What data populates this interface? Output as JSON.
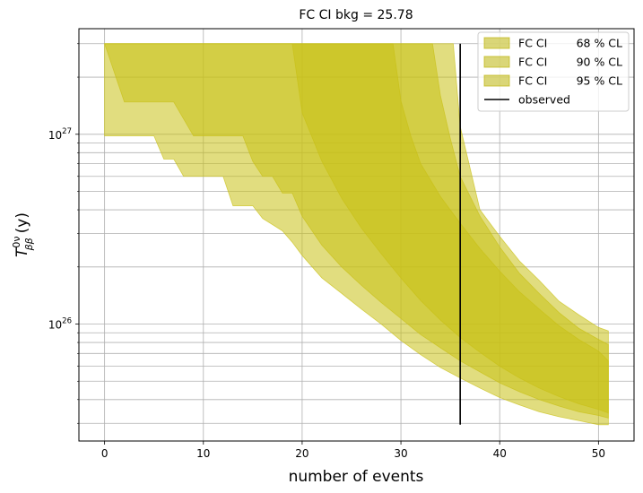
{
  "chart_data": {
    "type": "area",
    "title": "FC CI bkg = 25.78",
    "xlabel": "number of events",
    "ylabel": {
      "base": "T",
      "sup": "0ν",
      "sub": "ββ",
      "unit": "(y)"
    },
    "xlim": [
      -2.6,
      53.6
    ],
    "ylim": [
      2.42e+25,
      3.6e+27
    ],
    "yscale": "log",
    "grid": true,
    "x_ticks": [
      0,
      10,
      20,
      30,
      40,
      50
    ],
    "y_major_ticks": [
      {
        "value": 1e+26,
        "base": "10",
        "exp": "26"
      },
      {
        "value": 1e+27,
        "base": "10",
        "exp": "27"
      }
    ],
    "y_minor_ticks": [
      3e+25,
      4e+25,
      5e+25,
      6e+25,
      7e+25,
      8e+25,
      9e+25,
      2e+26,
      3e+26,
      4e+26,
      5e+26,
      6e+26,
      7e+26,
      8e+26,
      9e+26,
      2e+27,
      3e+27
    ],
    "legend_position": "top-right",
    "legend": [
      {
        "label": "FC CI",
        "cl": "68 % CL",
        "kind": "band",
        "color": "#bcb40a"
      },
      {
        "label": "FC CI",
        "cl": "90 % CL",
        "kind": "band",
        "color": "#bcb40a"
      },
      {
        "label": "FC CI",
        "cl": "95 % CL",
        "kind": "band",
        "color": "#bcb40a"
      },
      {
        "label": "observed",
        "cl": "",
        "kind": "line",
        "color": "#000000"
      }
    ],
    "series": [
      {
        "name": "FC CI 95 % CL",
        "color": "#c9c116",
        "opacity": 0.55,
        "upper": [
          [
            0,
            3e+27
          ],
          [
            35.3,
            3e+27
          ],
          [
            36,
            1.1e+27
          ],
          [
            38,
            4e+26
          ],
          [
            40,
            2.9e+26
          ],
          [
            42,
            2.15e+26
          ],
          [
            44,
            1.7e+26
          ],
          [
            46,
            1.32e+26
          ],
          [
            48,
            1.12e+26
          ],
          [
            50,
            9.6e+25
          ],
          [
            51,
            9.2e+25
          ]
        ],
        "lower": [
          [
            0,
            9.8e+26
          ],
          [
            5,
            9.8e+26
          ],
          [
            6,
            7.4e+26
          ],
          [
            7,
            7.4e+26
          ],
          [
            8,
            6e+26
          ],
          [
            12,
            6e+26
          ],
          [
            13,
            4.2e+26
          ],
          [
            15,
            4.2e+26
          ],
          [
            16,
            3.6e+26
          ],
          [
            18,
            3.1e+26
          ],
          [
            19,
            2.7e+26
          ],
          [
            20,
            2.3e+26
          ],
          [
            22,
            1.75e+26
          ],
          [
            24,
            1.45e+26
          ],
          [
            26,
            1.2e+26
          ],
          [
            28,
            1e+26
          ],
          [
            30,
            8.2e+25
          ],
          [
            32,
            6.9e+25
          ],
          [
            34,
            5.9e+25
          ],
          [
            36,
            5.2e+25
          ],
          [
            38,
            4.6e+25
          ],
          [
            40,
            4.1e+25
          ],
          [
            42,
            3.75e+25
          ],
          [
            44,
            3.45e+25
          ],
          [
            46,
            3.25e+25
          ],
          [
            48,
            3.1e+25
          ],
          [
            50,
            2.95e+25
          ],
          [
            51,
            2.95e+25
          ]
        ]
      },
      {
        "name": "FC CI 90 % CL",
        "color": "#c9c116",
        "opacity": 0.55,
        "upper": [
          [
            0,
            3e+27
          ],
          [
            33.2,
            3e+27
          ],
          [
            34,
            1.6e+27
          ],
          [
            35,
            9.5e+26
          ],
          [
            36,
            6e+26
          ],
          [
            38,
            3.7e+26
          ],
          [
            40,
            2.55e+26
          ],
          [
            42,
            1.85e+26
          ],
          [
            44,
            1.45e+26
          ],
          [
            46,
            1.15e+26
          ],
          [
            48,
            9.5e+25
          ],
          [
            50,
            8.3e+25
          ],
          [
            51,
            7.8e+25
          ]
        ],
        "lower": [
          [
            2,
            1.48e+27
          ],
          [
            7,
            1.48e+27
          ],
          [
            9,
            9.8e+26
          ],
          [
            14,
            9.8e+26
          ],
          [
            15,
            7.2e+26
          ],
          [
            16,
            6e+26
          ],
          [
            17,
            6e+26
          ],
          [
            18,
            4.9e+26
          ],
          [
            19,
            4.9e+26
          ],
          [
            20,
            3.7e+26
          ],
          [
            22,
            2.6e+26
          ],
          [
            24,
            2e+26
          ],
          [
            26,
            1.6e+26
          ],
          [
            28,
            1.3e+26
          ],
          [
            30,
            1.07e+26
          ],
          [
            32,
            8.8e+25
          ],
          [
            34,
            7.5e+25
          ],
          [
            36,
            6.4e+25
          ],
          [
            38,
            5.6e+25
          ],
          [
            40,
            4.9e+25
          ],
          [
            42,
            4.4e+25
          ],
          [
            44,
            4e+25
          ],
          [
            46,
            3.7e+25
          ],
          [
            48,
            3.45e+25
          ],
          [
            50,
            3.3e+25
          ],
          [
            51,
            3.2e+25
          ]
        ]
      },
      {
        "name": "FC CI 68 % CL",
        "color": "#c9c116",
        "opacity": 0.55,
        "upper": [
          [
            0,
            3e+27
          ],
          [
            29.2,
            3e+27
          ],
          [
            30,
            1.5e+27
          ],
          [
            31,
            9.8e+26
          ],
          [
            32,
            7e+26
          ],
          [
            34,
            4.7e+26
          ],
          [
            36,
            3.4e+26
          ],
          [
            38,
            2.5e+26
          ],
          [
            40,
            1.9e+26
          ],
          [
            42,
            1.48e+26
          ],
          [
            44,
            1.2e+26
          ],
          [
            46,
            9.8e+25
          ],
          [
            48,
            8.3e+25
          ],
          [
            50,
            7.2e+25
          ],
          [
            51,
            6.4e+25
          ]
        ],
        "lower": [
          [
            19,
            3e+27
          ],
          [
            20,
            1.3e+27
          ],
          [
            22,
            7.2e+26
          ],
          [
            24,
            4.6e+26
          ],
          [
            26,
            3.2e+26
          ],
          [
            28,
            2.35e+26
          ],
          [
            30,
            1.75e+26
          ],
          [
            32,
            1.33e+26
          ],
          [
            34,
            1.05e+26
          ],
          [
            36,
            8.5e+25
          ],
          [
            38,
            7.1e+25
          ],
          [
            40,
            6e+25
          ],
          [
            42,
            5.2e+25
          ],
          [
            44,
            4.6e+25
          ],
          [
            46,
            4.15e+25
          ],
          [
            48,
            3.8e+25
          ],
          [
            50,
            3.55e+25
          ],
          [
            51,
            3.4e+25
          ]
        ]
      }
    ],
    "observed": {
      "name": "observed",
      "x": 36,
      "y_range": [
        2.95e+25,
        3e+27
      ],
      "color": "#000000"
    }
  }
}
